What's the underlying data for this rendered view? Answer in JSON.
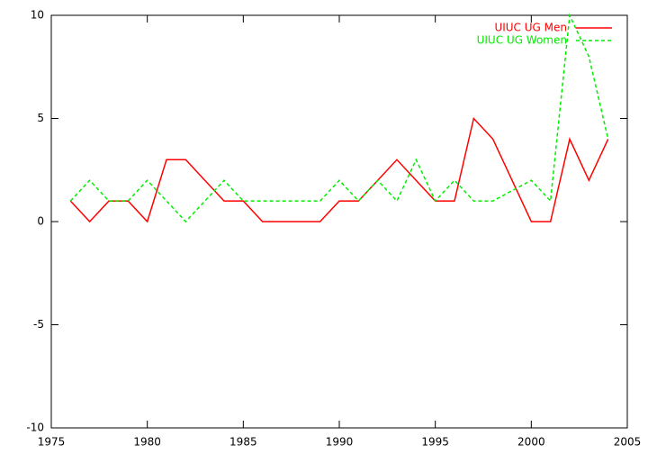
{
  "chart_data": {
    "type": "line",
    "x": [
      1976,
      1977,
      1978,
      1979,
      1980,
      1981,
      1982,
      1983,
      1984,
      1985,
      1986,
      1987,
      1988,
      1989,
      1990,
      1991,
      1992,
      1993,
      1994,
      1995,
      1996,
      1997,
      1998,
      1999,
      2000,
      2001,
      2002,
      2003,
      2004
    ],
    "series": [
      {
        "name": "UIUC UG Men",
        "color": "#ff0000",
        "dash": false,
        "values": [
          1,
          0,
          1,
          1,
          0,
          3,
          3,
          2,
          1,
          1,
          0,
          0,
          0,
          0,
          1,
          1,
          2,
          3,
          2,
          1,
          1,
          5,
          4,
          2,
          0,
          0,
          4,
          2,
          4
        ]
      },
      {
        "name": "UIUC UG Women",
        "color": "#00ee00",
        "dash": true,
        "values": [
          1,
          2,
          1,
          1,
          2,
          1,
          0,
          1,
          2,
          1,
          1,
          1,
          1,
          1,
          2,
          1,
          2,
          1,
          3,
          1,
          2,
          1,
          1,
          1.5,
          2,
          1,
          10,
          8,
          4
        ]
      }
    ],
    "xlim": [
      1975,
      2005
    ],
    "ylim": [
      -10,
      10
    ],
    "xticks": [
      1975,
      1980,
      1985,
      1990,
      1995,
      2000,
      2005
    ],
    "yticks": [
      -10,
      -5,
      0,
      5,
      10
    ],
    "legend": "top-right"
  }
}
